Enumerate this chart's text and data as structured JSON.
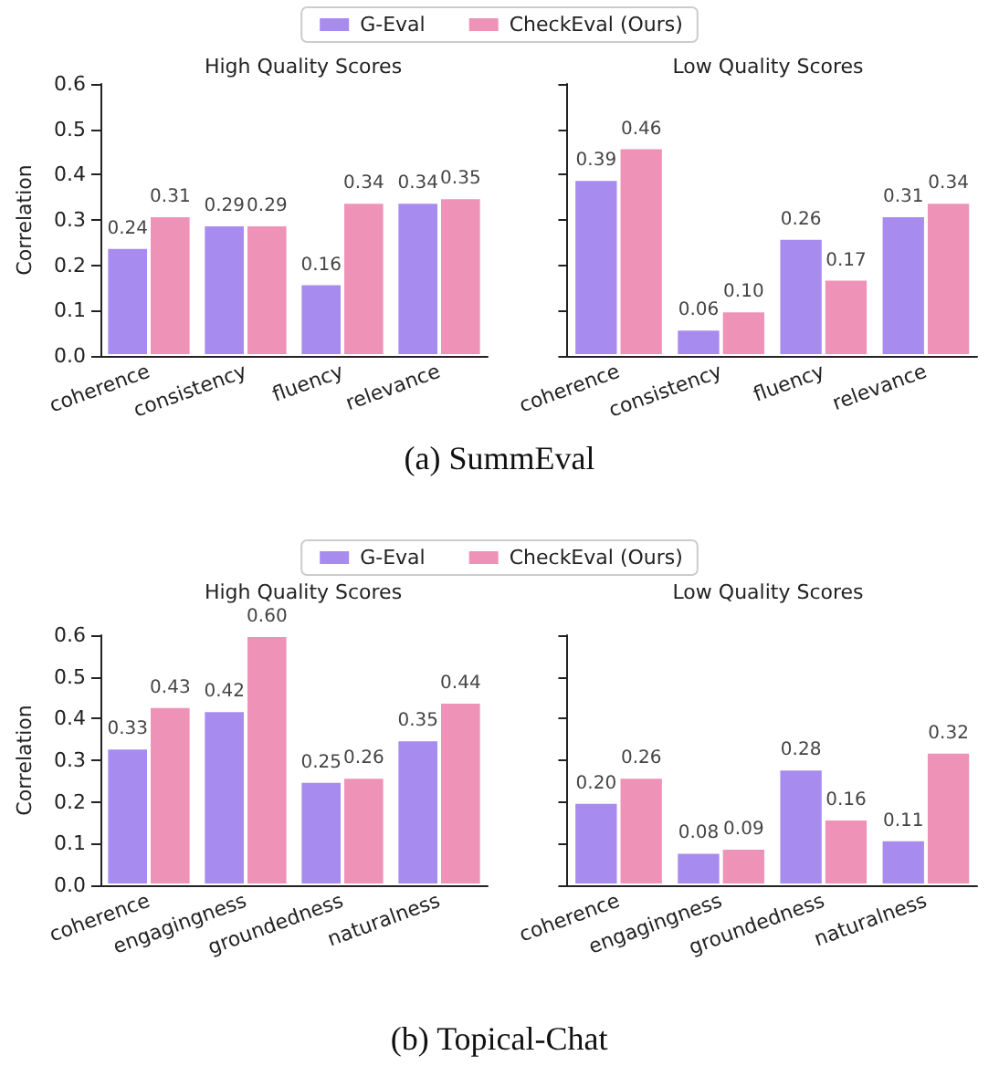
{
  "chart_data": [
    {
      "type": "bar",
      "title": "High Quality Scores",
      "ylabel": "Correlation",
      "categories": [
        "coherence",
        "consistency",
        "fluency",
        "relevance"
      ],
      "ylim": [
        0,
        0.6
      ],
      "yticks": [
        {
          "value": 0,
          "label": "0.0"
        },
        0.1,
        0.2,
        0.3,
        0.4,
        0.5,
        0.6
      ],
      "grid": false,
      "legend": "top",
      "annotations": [
        "(a) SummEval"
      ],
      "series": [
        {
          "name": "G-Eval",
          "color": "#a78bef",
          "values": [
            0.24,
            0.29,
            0.16,
            0.34
          ],
          "value_labels": [
            "0.24",
            "0.29",
            "0.16",
            "0.34"
          ]
        },
        {
          "name": "CheckEval (Ours)",
          "color": "#ee93b7",
          "values": [
            0.31,
            0.29,
            0.34,
            0.35
          ],
          "value_labels": [
            "0.31",
            "0.29",
            "0.34",
            "0.35"
          ]
        }
      ]
    },
    {
      "type": "bar",
      "title": "Low Quality Scores",
      "categories": [
        "coherence",
        "consistency",
        "fluency",
        "relevance"
      ],
      "ylim": [
        0,
        0.6
      ],
      "yticks": [
        0.0,
        0.1,
        0.2,
        0.3,
        0.4,
        0.5,
        0.6
      ],
      "tick_labels": "x",
      "grid": false,
      "series": [
        {
          "color": "#a78bef",
          "values": [
            0.39,
            0.06,
            0.26,
            0.31
          ],
          "value_labels": [
            "0.39",
            "0.06",
            "0.26",
            "0.31"
          ]
        },
        {
          "color": "#ee93b7",
          "values": [
            0.46,
            0.1,
            0.17,
            0.34
          ],
          "value_labels": [
            "0.46",
            "0.10",
            "0.17",
            "0.34"
          ]
        }
      ]
    },
    {
      "type": "bar",
      "title": "High Quality Scores",
      "ylabel": "Correlation",
      "categories": [
        "coherence",
        "engagingness",
        "groundedness",
        "naturalness"
      ],
      "ylim": [
        0,
        0.6
      ],
      "yticks": [
        {
          "value": 0,
          "label": "0.0"
        },
        0.1,
        0.2,
        0.3,
        0.4,
        0.5,
        0.6
      ],
      "grid": false,
      "legend": "top",
      "annotations": [
        "(b) Topical-Chat"
      ],
      "series": [
        {
          "name": "G-Eval",
          "color": "#a78bef",
          "values": [
            0.33,
            0.42,
            0.25,
            0.35
          ],
          "value_labels": [
            "0.33",
            "0.42",
            "0.25",
            "0.35"
          ]
        },
        {
          "name": "CheckEval (Ours)",
          "color": "#ee93b7",
          "values": [
            0.43,
            0.6,
            0.26,
            0.44
          ],
          "value_labels": [
            "0.43",
            "0.60",
            "0.26",
            "0.44"
          ]
        }
      ]
    },
    {
      "type": "bar",
      "title": "Low Quality Scores",
      "categories": [
        "coherence",
        "engagingness",
        "groundedness",
        "naturalness"
      ],
      "ylim": [
        0,
        0.6
      ],
      "yticks": [
        0.0,
        0.1,
        0.2,
        0.3,
        0.4,
        0.5,
        0.6
      ],
      "tick_labels": "x",
      "grid": false,
      "series": [
        {
          "color": "#a78bef",
          "values": [
            0.2,
            0.08,
            0.28,
            0.11
          ],
          "value_labels": [
            "0.20",
            "0.08",
            "0.28",
            "0.11"
          ]
        },
        {
          "color": "#ee93b7",
          "values": [
            0.26,
            0.09,
            0.16,
            0.32
          ],
          "value_labels": [
            "0.26",
            "0.09",
            "0.16",
            "0.32"
          ]
        }
      ]
    }
  ]
}
